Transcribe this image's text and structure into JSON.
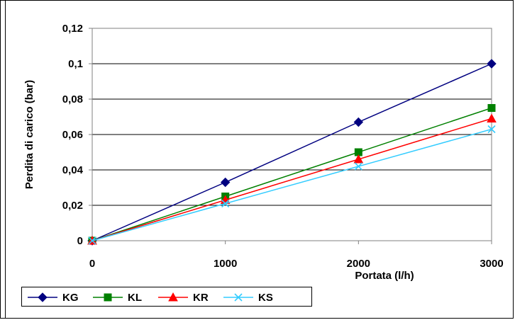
{
  "chart_data": {
    "type": "line",
    "xlabel": "Portata (l/h)",
    "ylabel": "Perdita di carico (bar)",
    "x": [
      0,
      1000,
      2000,
      3000
    ],
    "x_tick_labels": [
      "0",
      "1000",
      "2000",
      "3000"
    ],
    "y_tick_labels": [
      "0",
      "0,02",
      "0,04",
      "0,06",
      "0,08",
      "0,1",
      "0,12"
    ],
    "y_ticks": [
      0,
      0.02,
      0.04,
      0.06,
      0.08,
      0.1,
      0.12
    ],
    "xlim": [
      0,
      3000
    ],
    "ylim": [
      0,
      0.12
    ],
    "grid": "horizontal",
    "legend_position": "bottom-left",
    "series": [
      {
        "name": "KG",
        "values": [
          0,
          0.033,
          0.067,
          0.1
        ],
        "color": "#000080",
        "marker": "diamond"
      },
      {
        "name": "KL",
        "values": [
          0,
          0.025,
          0.05,
          0.075
        ],
        "color": "#008000",
        "marker": "square"
      },
      {
        "name": "KR",
        "values": [
          0,
          0.023,
          0.046,
          0.069
        ],
        "color": "#ff0000",
        "marker": "triangle"
      },
      {
        "name": "KS",
        "values": [
          0,
          0.021,
          0.042,
          0.063
        ],
        "color": "#33ccff",
        "marker": "x"
      }
    ]
  }
}
